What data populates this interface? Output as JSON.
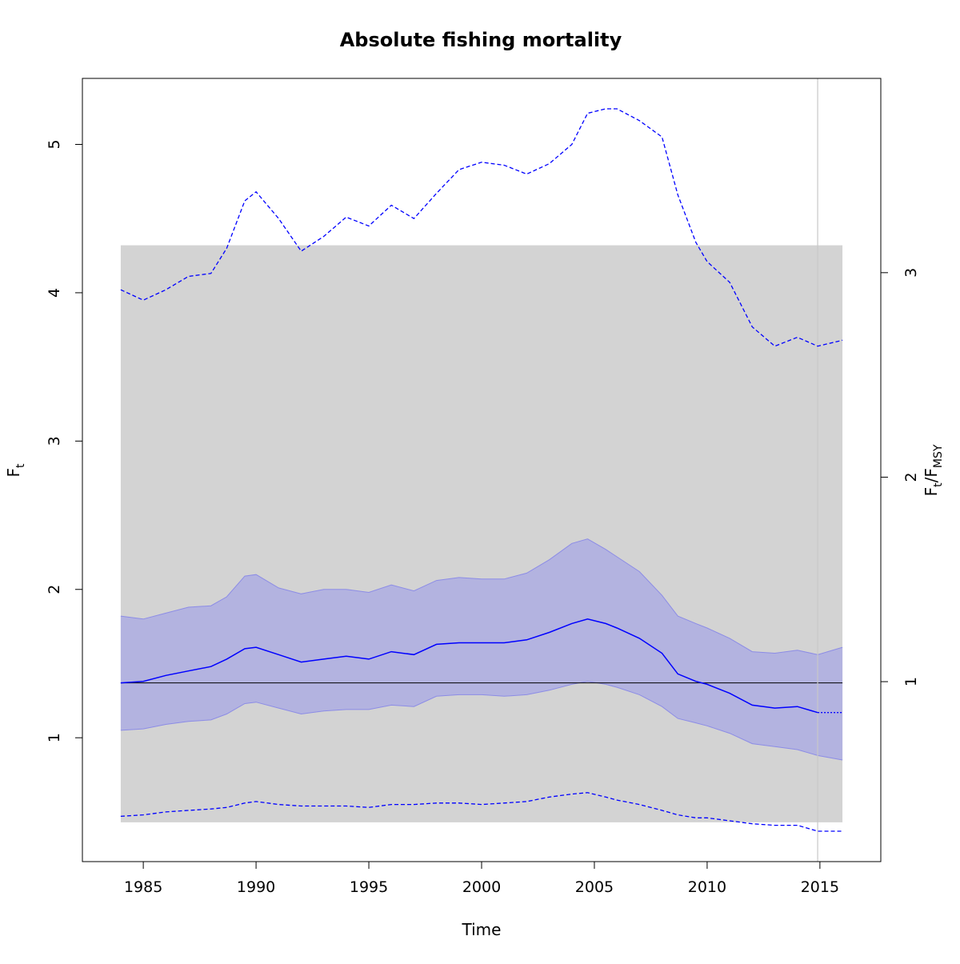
{
  "chart_data": {
    "type": "line",
    "title": "Absolute fishing mortality",
    "xlabel": "Time",
    "ylabel": {
      "base": "F",
      "sub": "t"
    },
    "y2label": {
      "base1": "F",
      "sub1": "t",
      "sep": "/",
      "base2": "F",
      "sub2": "MSY"
    },
    "xlim": [
      1982.3,
      2017.7
    ],
    "ylim": [
      0.165,
      5.445
    ],
    "y2lim": [
      0.12,
      3.95
    ],
    "xticks": [
      1985,
      1990,
      1995,
      2000,
      2005,
      2010,
      2015
    ],
    "yticks": [
      1,
      2,
      3,
      4,
      5
    ],
    "y2ticks": [
      1,
      2,
      3
    ],
    "fmsy": 1.37,
    "vline_x": 2014.9,
    "grey_band": {
      "x": [
        1984.0,
        2016.0
      ],
      "y": [
        0.43,
        4.32
      ]
    },
    "colors": {
      "line": "#0000ff",
      "ci_fill": "#b3b3e0",
      "ci_edge": "#8c8ce6",
      "grey_band": "#d3d3d3",
      "vline": "#c8c8c8",
      "ref_line": "#000000"
    },
    "series": [
      {
        "name": "",
        "role": "estimate",
        "style": "solid",
        "x": [
          1984,
          1985,
          1986,
          1987,
          1988,
          1988.7,
          1989.5,
          1990,
          1991,
          1992,
          1993,
          1994,
          1995,
          1996,
          1997,
          1998,
          1999,
          2000,
          2001,
          2002,
          2003,
          2004,
          2004.7,
          2005.5,
          2006,
          2007,
          2008,
          2008.7,
          2009.5,
          2010,
          2011,
          2012,
          2013,
          2014,
          2014.9
        ],
        "values": [
          1.37,
          1.38,
          1.42,
          1.45,
          1.48,
          1.53,
          1.6,
          1.61,
          1.56,
          1.51,
          1.53,
          1.55,
          1.53,
          1.58,
          1.56,
          1.63,
          1.64,
          1.64,
          1.64,
          1.66,
          1.71,
          1.77,
          1.8,
          1.77,
          1.74,
          1.67,
          1.57,
          1.43,
          1.38,
          1.36,
          1.3,
          1.22,
          1.2,
          1.21,
          1.17
        ]
      },
      {
        "name": "",
        "role": "prediction",
        "style": "dotted",
        "x": [
          2014.9,
          2015.5,
          2016
        ],
        "values": [
          1.17,
          1.17,
          1.17
        ]
      },
      {
        "name": "",
        "role": "ci_upper",
        "x": [
          1984,
          1985,
          1986,
          1987,
          1988,
          1988.7,
          1989.5,
          1990,
          1991,
          1992,
          1993,
          1994,
          1995,
          1996,
          1997,
          1998,
          1999,
          2000,
          2001,
          2002,
          2003,
          2004,
          2004.7,
          2005.5,
          2006,
          2007,
          2008,
          2008.7,
          2009.5,
          2010,
          2011,
          2012,
          2013,
          2014,
          2014.9,
          2016
        ],
        "values": [
          1.82,
          1.8,
          1.84,
          1.88,
          1.89,
          1.95,
          2.09,
          2.1,
          2.01,
          1.97,
          2.0,
          2.0,
          1.98,
          2.03,
          1.99,
          2.06,
          2.08,
          2.07,
          2.07,
          2.11,
          2.2,
          2.31,
          2.34,
          2.27,
          2.22,
          2.12,
          1.96,
          1.82,
          1.77,
          1.74,
          1.67,
          1.58,
          1.57,
          1.59,
          1.56,
          1.61
        ]
      },
      {
        "name": "",
        "role": "ci_lower",
        "x": [
          1984,
          1985,
          1986,
          1987,
          1988,
          1988.7,
          1989.5,
          1990,
          1991,
          1992,
          1993,
          1994,
          1995,
          1996,
          1997,
          1998,
          1999,
          2000,
          2001,
          2002,
          2003,
          2004,
          2004.7,
          2005.5,
          2006,
          2007,
          2008,
          2008.7,
          2009.5,
          2010,
          2011,
          2012,
          2013,
          2014,
          2014.9,
          2016
        ],
        "values": [
          1.05,
          1.06,
          1.09,
          1.11,
          1.12,
          1.16,
          1.23,
          1.24,
          1.2,
          1.16,
          1.18,
          1.19,
          1.19,
          1.22,
          1.21,
          1.28,
          1.29,
          1.29,
          1.28,
          1.29,
          1.32,
          1.36,
          1.38,
          1.36,
          1.34,
          1.29,
          1.21,
          1.13,
          1.1,
          1.08,
          1.03,
          0.96,
          0.94,
          0.92,
          0.88,
          0.85
        ]
      },
      {
        "name": "",
        "role": "outer_upper",
        "style": "dashed",
        "x": [
          1984,
          1985,
          1986,
          1987,
          1988,
          1988.7,
          1989.5,
          1990,
          1991,
          1992,
          1993,
          1994,
          1995,
          1996,
          1997,
          1998,
          1999,
          2000,
          2001,
          2002,
          2003,
          2004,
          2004.7,
          2005.5,
          2006,
          2007,
          2008,
          2008.7,
          2009.5,
          2010,
          2011,
          2012,
          2013,
          2014,
          2014.9,
          2016
        ],
        "values": [
          4.02,
          3.95,
          4.02,
          4.11,
          4.13,
          4.3,
          4.62,
          4.68,
          4.5,
          4.28,
          4.38,
          4.51,
          4.45,
          4.59,
          4.5,
          4.67,
          4.83,
          4.88,
          4.86,
          4.8,
          4.87,
          5.0,
          5.21,
          5.24,
          5.24,
          5.16,
          5.05,
          4.66,
          4.34,
          4.21,
          4.07,
          3.77,
          3.64,
          3.7,
          3.64,
          3.68
        ]
      },
      {
        "name": "",
        "role": "outer_lower",
        "style": "dashed",
        "x": [
          1984,
          1985,
          1986,
          1987,
          1988,
          1988.7,
          1989.5,
          1990,
          1991,
          1992,
          1993,
          1994,
          1995,
          1996,
          1997,
          1998,
          1999,
          2000,
          2001,
          2002,
          2003,
          2004,
          2004.7,
          2005.5,
          2006,
          2007,
          2008,
          2008.7,
          2009.5,
          2010,
          2011,
          2012,
          2013,
          2014,
          2014.9,
          2016
        ],
        "values": [
          0.47,
          0.48,
          0.5,
          0.51,
          0.52,
          0.53,
          0.56,
          0.57,
          0.55,
          0.54,
          0.54,
          0.54,
          0.53,
          0.55,
          0.55,
          0.56,
          0.56,
          0.55,
          0.56,
          0.57,
          0.6,
          0.62,
          0.63,
          0.6,
          0.58,
          0.55,
          0.51,
          0.48,
          0.46,
          0.46,
          0.44,
          0.42,
          0.41,
          0.41,
          0.37,
          0.37
        ]
      }
    ]
  }
}
